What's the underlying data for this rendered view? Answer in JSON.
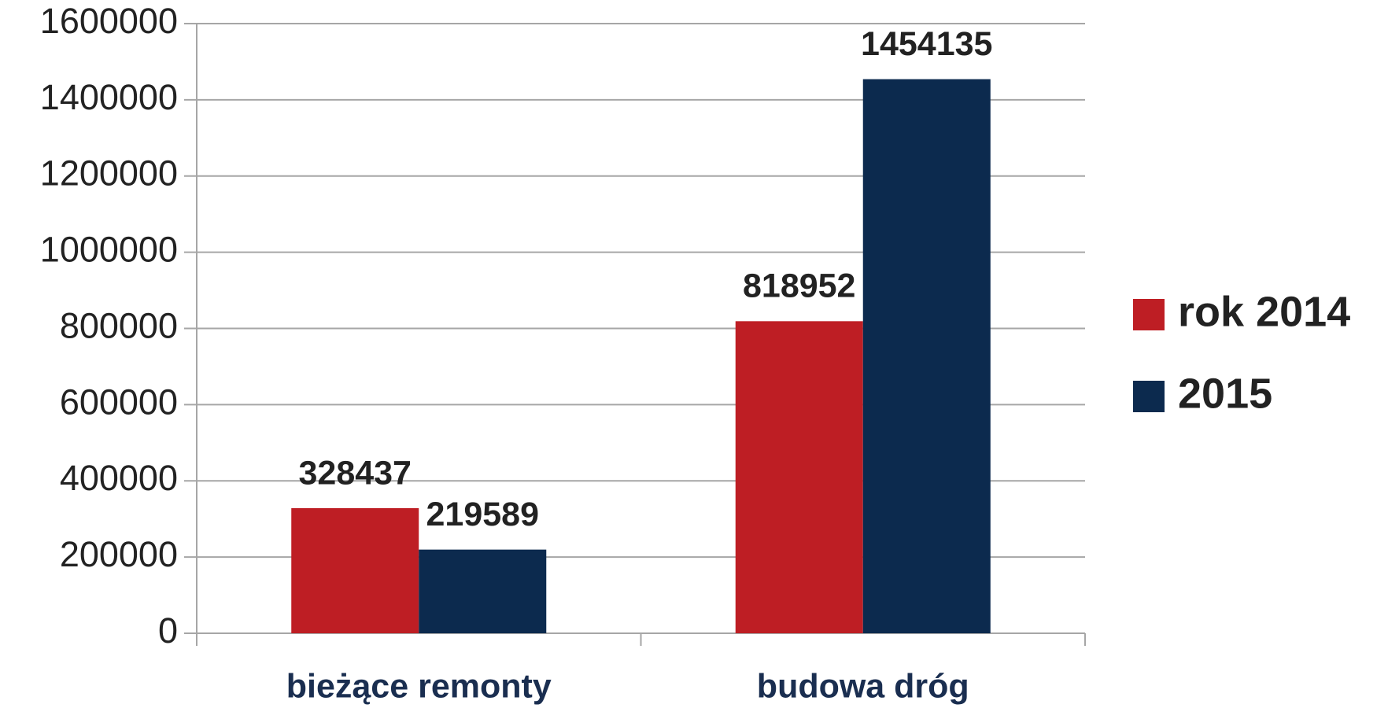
{
  "chart_data": {
    "type": "bar",
    "categories": [
      "bieżące remonty",
      "budowa dróg"
    ],
    "series": [
      {
        "name": "rok 2014",
        "color": "#be1e24",
        "values": [
          328437,
          818952
        ]
      },
      {
        "name": "2015",
        "color": "#0c2a4e",
        "values": [
          219589,
          1454135
        ]
      }
    ],
    "ylim": [
      0,
      1600000
    ],
    "yticks": [
      0,
      200000,
      400000,
      600000,
      800000,
      1000000,
      1200000,
      1400000,
      1600000
    ],
    "grid": true,
    "legend": "right"
  }
}
